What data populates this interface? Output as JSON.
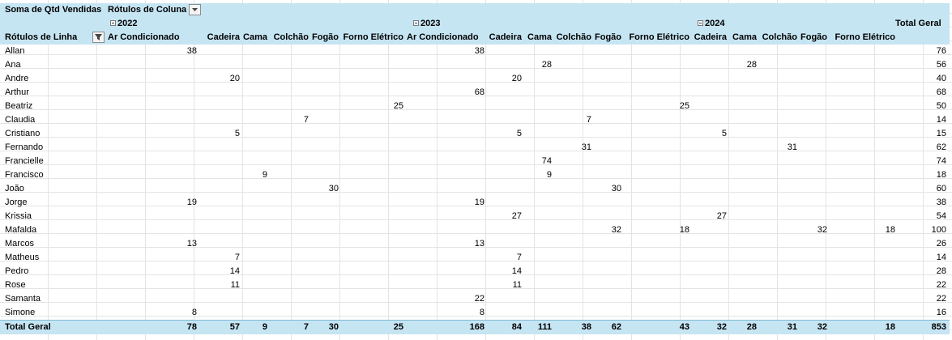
{
  "pivot": {
    "value_field": "Soma de Qtd Vendidas",
    "col_labels": "Rótulos de Coluna",
    "row_labels": "Rótulos de Linha",
    "grand_total_header": "Total Geral",
    "years": [
      "2022",
      "2023",
      "2024"
    ],
    "columns": [
      {
        "year": "2022",
        "name": "Ar Condicionado"
      },
      {
        "year": "2022",
        "name": "Cadeira"
      },
      {
        "year": "2022",
        "name": "Cama"
      },
      {
        "year": "2022",
        "name": "Colchão"
      },
      {
        "year": "2022",
        "name": "Fogão"
      },
      {
        "year": "2022",
        "name": "Forno Elétrico"
      },
      {
        "year": "2023",
        "name": "Ar Condicionado"
      },
      {
        "year": "2023",
        "name": "Cadeira"
      },
      {
        "year": "2023",
        "name": "Cama"
      },
      {
        "year": "2023",
        "name": "Colchão"
      },
      {
        "year": "2023",
        "name": "Fogão"
      },
      {
        "year": "2023",
        "name": "Forno Elétrico"
      },
      {
        "year": "2024",
        "name": "Cadeira"
      },
      {
        "year": "2024",
        "name": "Cama"
      },
      {
        "year": "2024",
        "name": "Colchão"
      },
      {
        "year": "2024",
        "name": "Fogão"
      },
      {
        "year": "2024",
        "name": "Forno Elétrico"
      }
    ],
    "rows": [
      {
        "label": "Allan",
        "values": [
          "38",
          "",
          "",
          "",
          "",
          "",
          "38",
          "",
          "",
          "",
          "",
          "",
          "",
          "",
          "",
          "",
          ""
        ],
        "total": "76"
      },
      {
        "label": "Ana",
        "values": [
          "",
          "",
          "",
          "",
          "",
          "",
          "",
          "",
          "28",
          "",
          "",
          "",
          "",
          "28",
          "",
          "",
          ""
        ],
        "total": "56"
      },
      {
        "label": "Andre",
        "values": [
          "",
          "20",
          "",
          "",
          "",
          "",
          "",
          "20",
          "",
          "",
          "",
          "",
          "",
          "",
          "",
          "",
          ""
        ],
        "total": "40"
      },
      {
        "label": "Arthur",
        "values": [
          "",
          "",
          "",
          "",
          "",
          "",
          "68",
          "",
          "",
          "",
          "",
          "",
          "",
          "",
          "",
          "",
          ""
        ],
        "total": "68"
      },
      {
        "label": "Beatriz",
        "values": [
          "",
          "",
          "",
          "",
          "",
          "25",
          "",
          "",
          "",
          "",
          "",
          "25",
          "",
          "",
          "",
          "",
          ""
        ],
        "total": "50"
      },
      {
        "label": "Claudia",
        "values": [
          "",
          "",
          "",
          "7",
          "",
          "",
          "",
          "",
          "",
          "7",
          "",
          "",
          "",
          "",
          "",
          "",
          ""
        ],
        "total": "14"
      },
      {
        "label": "Cristiano",
        "values": [
          "",
          "5",
          "",
          "",
          "",
          "",
          "",
          "5",
          "",
          "",
          "",
          "",
          "5",
          "",
          "",
          "",
          ""
        ],
        "total": "15"
      },
      {
        "label": "Fernando",
        "values": [
          "",
          "",
          "",
          "",
          "",
          "",
          "",
          "",
          "",
          "31",
          "",
          "",
          "",
          "",
          "31",
          "",
          ""
        ],
        "total": "62"
      },
      {
        "label": "Francielle",
        "values": [
          "",
          "",
          "",
          "",
          "",
          "",
          "",
          "",
          "74",
          "",
          "",
          "",
          "",
          "",
          "",
          "",
          ""
        ],
        "total": "74"
      },
      {
        "label": "Francisco",
        "values": [
          "",
          "",
          "9",
          "",
          "",
          "",
          "",
          "",
          "9",
          "",
          "",
          "",
          "",
          "",
          "",
          "",
          ""
        ],
        "total": "18"
      },
      {
        "label": "João",
        "values": [
          "",
          "",
          "",
          "",
          "30",
          "",
          "",
          "",
          "",
          "",
          "30",
          "",
          "",
          "",
          "",
          "",
          ""
        ],
        "total": "60"
      },
      {
        "label": "Jorge",
        "values": [
          "19",
          "",
          "",
          "",
          "",
          "",
          "19",
          "",
          "",
          "",
          "",
          "",
          "",
          "",
          "",
          "",
          ""
        ],
        "total": "38"
      },
      {
        "label": "Krissia",
        "values": [
          "",
          "",
          "",
          "",
          "",
          "",
          "",
          "27",
          "",
          "",
          "",
          "",
          "27",
          "",
          "",
          "",
          ""
        ],
        "total": "54"
      },
      {
        "label": "Mafalda",
        "values": [
          "",
          "",
          "",
          "",
          "",
          "",
          "",
          "",
          "",
          "",
          "32",
          "18",
          "",
          "",
          "",
          "32",
          "18"
        ],
        "total": "100"
      },
      {
        "label": "Marcos",
        "values": [
          "13",
          "",
          "",
          "",
          "",
          "",
          "13",
          "",
          "",
          "",
          "",
          "",
          "",
          "",
          "",
          "",
          ""
        ],
        "total": "26"
      },
      {
        "label": "Matheus",
        "values": [
          "",
          "7",
          "",
          "",
          "",
          "",
          "",
          "7",
          "",
          "",
          "",
          "",
          "",
          "",
          "",
          "",
          ""
        ],
        "total": "14"
      },
      {
        "label": "Pedro",
        "values": [
          "",
          "14",
          "",
          "",
          "",
          "",
          "",
          "14",
          "",
          "",
          "",
          "",
          "",
          "",
          "",
          "",
          ""
        ],
        "total": "28"
      },
      {
        "label": "Rose",
        "values": [
          "",
          "11",
          "",
          "",
          "",
          "",
          "",
          "11",
          "",
          "",
          "",
          "",
          "",
          "",
          "",
          "",
          ""
        ],
        "total": "22"
      },
      {
        "label": "Samanta",
        "values": [
          "",
          "",
          "",
          "",
          "",
          "",
          "22",
          "",
          "",
          "",
          "",
          "",
          "",
          "",
          "",
          "",
          ""
        ],
        "total": "22"
      },
      {
        "label": "Simone",
        "values": [
          "8",
          "",
          "",
          "",
          "",
          "",
          "8",
          "",
          "",
          "",
          "",
          "",
          "",
          "",
          "",
          "",
          ""
        ],
        "total": "16"
      }
    ],
    "grand_total": {
      "label": "Total Geral",
      "values": [
        "78",
        "57",
        "9",
        "7",
        "30",
        "25",
        "168",
        "84",
        "111",
        "38",
        "62",
        "43",
        "32",
        "28",
        "31",
        "32",
        "18"
      ],
      "total": "853"
    }
  }
}
